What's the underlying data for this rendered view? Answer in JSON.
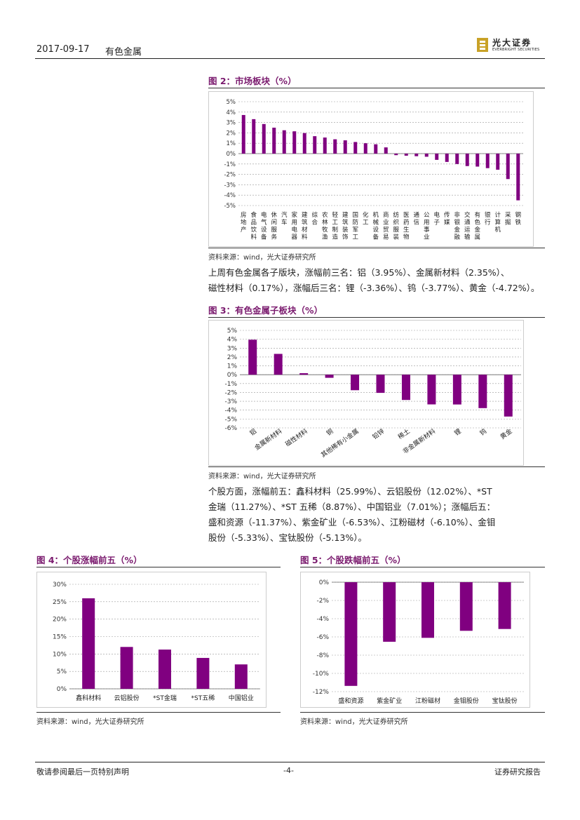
{
  "header": {
    "date": "2017-09-17",
    "sector": "有色金属",
    "logo_cn": "光大证券",
    "logo_en": "EVERBRIGHT SECURITIES"
  },
  "fig2": {
    "title": "图 2：市场板块（%）",
    "source": "资料来源：wind，光大证券研究所"
  },
  "fig3": {
    "title": "图 3：有色金属子板块（%）",
    "source": "资料来源：wind，光大证券研究所"
  },
  "fig4": {
    "title": "图 4：个股涨幅前五（%）",
    "source": "资料来源：wind，光大证券研究所"
  },
  "fig5": {
    "title": "图 5：个股跌幅前五（%）",
    "source": "资料来源：wind，光大证券研究所"
  },
  "para1": {
    "line1": "上周有色金属各子版块，涨幅前三名：铝（3.95%）、金属新材料（2.35%）、",
    "line2": "磁性材料（0.17%），涨幅后三名：锂（-3.36%）、钨（-3.77%）、黄金（-4.72%）。"
  },
  "para2": {
    "line1": "个股方面，涨幅前五：鑫科材料（25.99%）、云铝股份（12.02%）、*ST",
    "line2": "金瑞（11.27%）、*ST 五稀（8.87%）、中国铝业（7.01%）；涨幅后五：",
    "line3": "盛和资源（-11.37%）、紫金矿业（-6.53%）、江粉磁材（-6.10%）、金钼",
    "line4": "股份（-5.33%）、宝钛股份（-5.13%）。"
  },
  "footer": {
    "left": "敬请参阅最后一页特别声明",
    "center": "-4-",
    "right": "证券研究报告"
  },
  "colors": {
    "bar": "#800080",
    "title": "#7a1a6e"
  },
  "chart_data": [
    {
      "id": "fig2",
      "type": "bar",
      "ylim": [
        -5,
        5
      ],
      "yticks": [
        "5%",
        "4%",
        "3%",
        "2%",
        "1%",
        "0%",
        "-1%",
        "-2%",
        "-3%",
        "-4%",
        "-5%"
      ],
      "categories": [
        "房地产",
        "食品饮料",
        "电气设备",
        "休闲服务",
        "汽车",
        "家用电器",
        "建筑材料",
        "综合",
        "农林牧渔",
        "轻工制造",
        "建筑装饰",
        "国防军工",
        "化工",
        "机械设备",
        "商业贸易",
        "纺织服装",
        "医药生物",
        "通信",
        "公用事业",
        "电子",
        "传媒",
        "非银金融",
        "交通运输",
        "有色金属",
        "银行",
        "计算机",
        "采掘",
        "钢铁"
      ],
      "values": [
        3.72,
        3.32,
        2.85,
        2.5,
        2.25,
        2.15,
        1.98,
        1.68,
        1.55,
        1.38,
        1.28,
        1.12,
        1.0,
        0.9,
        0.6,
        -0.15,
        -0.2,
        -0.25,
        -0.3,
        -0.6,
        -0.8,
        -1.0,
        -1.2,
        -1.25,
        -1.4,
        -1.55,
        -2.45,
        -4.5
      ]
    },
    {
      "id": "fig3",
      "type": "bar",
      "ylim": [
        -6,
        5
      ],
      "yticks": [
        "5%",
        "4%",
        "3%",
        "2%",
        "1%",
        "0%",
        "-1%",
        "-2%",
        "-3%",
        "-4%",
        "-5%",
        "-6%"
      ],
      "categories": [
        "铝",
        "金属新材料",
        "磁性材料",
        "铜",
        "其他稀有小金属",
        "铅锌",
        "稀土",
        "非金属新材料",
        "锂",
        "钨",
        "黄金"
      ],
      "values": [
        3.95,
        2.35,
        0.17,
        -0.35,
        -1.75,
        -2.05,
        -2.85,
        -3.35,
        -3.36,
        -3.77,
        -4.72
      ]
    },
    {
      "id": "fig4",
      "type": "bar",
      "ylim": [
        0,
        30
      ],
      "yticks": [
        "30%",
        "25%",
        "20%",
        "15%",
        "10%",
        "5%",
        "0%"
      ],
      "categories": [
        "鑫科材料",
        "云铝股份",
        "*ST金瑞",
        "*ST五稀",
        "中国铝业"
      ],
      "values": [
        25.99,
        12.02,
        11.27,
        8.87,
        7.01
      ]
    },
    {
      "id": "fig5",
      "type": "bar",
      "ylim": [
        -12,
        0
      ],
      "yticks": [
        "0%",
        "-2%",
        "-4%",
        "-6%",
        "-8%",
        "-10%",
        "-12%"
      ],
      "categories": [
        "盛和资源",
        "紫金矿业",
        "江粉磁材",
        "金钼股份",
        "宝钛股份"
      ],
      "values": [
        -11.37,
        -6.53,
        -6.1,
        -5.33,
        -5.13
      ]
    }
  ]
}
